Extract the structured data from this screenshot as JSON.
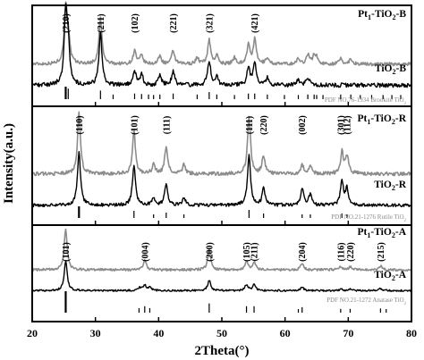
{
  "chart_data": {
    "type": "line",
    "xlabel": "2Theta(°)",
    "ylabel": "Intensity(a.u.)",
    "xlim": [
      20,
      80
    ],
    "xticks": [
      "20",
      "30",
      "40",
      "50",
      "60",
      "70",
      "80"
    ],
    "grid": false,
    "colors": {
      "gray": "#8c8c8c",
      "black": "#000000",
      "ref": "#000000",
      "refGray": "#9a9a9a"
    },
    "panels": [
      {
        "id": "brookite",
        "series": [
          {
            "name": "Pt1-TiO2-B",
            "label": [
              "Pt",
              "1",
              "-TiO",
              "2",
              "-B"
            ],
            "color": "gray",
            "peaks": [
              [
                25.3,
                1.0
              ],
              [
                25.7,
                0.45
              ],
              [
                30.8,
                0.85
              ],
              [
                36.2,
                0.25
              ],
              [
                37.3,
                0.15
              ],
              [
                40.2,
                0.15
              ],
              [
                42.3,
                0.25
              ],
              [
                46.1,
                0.12
              ],
              [
                48.0,
                0.45
              ],
              [
                49.2,
                0.15
              ],
              [
                52.0,
                0.12
              ],
              [
                54.2,
                0.35
              ],
              [
                55.2,
                0.45
              ],
              [
                57.2,
                0.12
              ],
              [
                62.1,
                0.1
              ],
              [
                63.6,
                0.18
              ],
              [
                64.6,
                0.15
              ],
              [
                65.0,
                0.1
              ],
              [
                68.8,
                0.1
              ],
              [
                70.4,
                0.1
              ]
            ]
          },
          {
            "name": "TiO2-B",
            "label": [
              "TiO",
              "2",
              "-B"
            ],
            "color": "black",
            "peaks": [
              [
                25.3,
                1.0
              ],
              [
                25.7,
                0.5
              ],
              [
                30.8,
                0.75
              ],
              [
                36.2,
                0.2
              ],
              [
                37.3,
                0.15
              ],
              [
                40.2,
                0.15
              ],
              [
                42.3,
                0.2
              ],
              [
                48.0,
                0.35
              ],
              [
                49.2,
                0.12
              ],
              [
                54.2,
                0.25
              ],
              [
                55.2,
                0.3
              ],
              [
                57.2,
                0.1
              ],
              [
                62.1,
                0.08
              ],
              [
                63.6,
                0.12
              ]
            ]
          }
        ],
        "reference": {
          "label": [
            "PDF NO.76-1934 Brookite TiO",
            "2"
          ],
          "lines": [
            [
              25.3,
              1.0
            ],
            [
              25.7,
              0.8
            ],
            [
              30.8,
              0.6
            ],
            [
              32.8,
              0.2
            ],
            [
              36.2,
              0.3
            ],
            [
              37.3,
              0.25
            ],
            [
              38.4,
              0.2
            ],
            [
              39.2,
              0.15
            ],
            [
              40.2,
              0.2
            ],
            [
              42.3,
              0.3
            ],
            [
              46.1,
              0.2
            ],
            [
              48.0,
              0.45
            ],
            [
              49.2,
              0.2
            ],
            [
              52.0,
              0.15
            ],
            [
              54.2,
              0.3
            ],
            [
              55.2,
              0.3
            ],
            [
              57.2,
              0.2
            ],
            [
              59.9,
              0.15
            ],
            [
              62.1,
              0.15
            ],
            [
              63.6,
              0.2
            ],
            [
              64.6,
              0.2
            ],
            [
              65.0,
              0.15
            ],
            [
              66.0,
              0.15
            ],
            [
              68.8,
              0.2
            ],
            [
              70.4,
              0.2
            ],
            [
              71.9,
              0.15
            ],
            [
              73.7,
              0.15
            ],
            [
              75.5,
              0.15
            ],
            [
              76.9,
              0.15
            ],
            [
              78.3,
              0.15
            ]
          ]
        },
        "hkl": [
          {
            "text": "(210)",
            "x": 25.3
          },
          {
            "text": "(211)",
            "x": 30.8
          },
          {
            "text": "(102)",
            "x": 36.2
          },
          {
            "text": "(221)",
            "x": 42.3
          },
          {
            "text": "(321)",
            "x": 48.0
          },
          {
            "text": "(421)",
            "x": 55.2
          }
        ]
      },
      {
        "id": "rutile",
        "series": [
          {
            "name": "Pt1-TiO2-R",
            "label": [
              "Pt",
              "1",
              "-TiO",
              "2",
              "-R"
            ],
            "color": "gray",
            "peaks": [
              [
                27.4,
                1.0
              ],
              [
                36.1,
                0.7
              ],
              [
                39.2,
                0.15
              ],
              [
                41.2,
                0.45
              ],
              [
                44.0,
                0.15
              ],
              [
                54.3,
                0.95
              ],
              [
                56.6,
                0.3
              ],
              [
                62.7,
                0.15
              ],
              [
                64.0,
                0.12
              ],
              [
                69.0,
                0.35
              ],
              [
                69.8,
                0.3
              ]
            ]
          },
          {
            "name": "TiO2-R",
            "label": [
              "TiO",
              "2",
              "-R"
            ],
            "color": "black",
            "peaks": [
              [
                27.4,
                1.0
              ],
              [
                36.1,
                0.75
              ],
              [
                39.2,
                0.15
              ],
              [
                41.2,
                0.4
              ],
              [
                44.0,
                0.15
              ],
              [
                54.3,
                0.95
              ],
              [
                56.6,
                0.3
              ],
              [
                62.7,
                0.3
              ],
              [
                64.0,
                0.2
              ],
              [
                69.0,
                0.45
              ],
              [
                69.8,
                0.3
              ]
            ]
          }
        ],
        "reference": {
          "label": [
            "PDF NO.21-1276 Rutile TiO",
            "2"
          ],
          "lines": [
            [
              27.4,
              1.0
            ],
            [
              36.1,
              0.5
            ],
            [
              39.2,
              0.1
            ],
            [
              41.2,
              0.3
            ],
            [
              44.0,
              0.1
            ],
            [
              54.3,
              0.6
            ],
            [
              56.6,
              0.2
            ],
            [
              62.7,
              0.1
            ],
            [
              64.0,
              0.1
            ],
            [
              69.0,
              0.2
            ],
            [
              69.8,
              0.1
            ]
          ]
        },
        "hkl": [
          {
            "text": "(110)",
            "x": 27.4
          },
          {
            "text": "(101)",
            "x": 36.1
          },
          {
            "text": "(111)",
            "x": 41.2
          },
          {
            "text": "(111)",
            "x": 54.3
          },
          {
            "text": "(220)",
            "x": 56.6
          },
          {
            "text": "(002)",
            "x": 62.7
          },
          {
            "text": "(301)",
            "x": 68.8
          },
          {
            "text": "(112)",
            "x": 69.8
          }
        ]
      },
      {
        "id": "anatase",
        "series": [
          {
            "name": "Pt1-TiO2-A",
            "label": [
              "Pt",
              "1",
              "-TiO",
              "2",
              "-A"
            ],
            "color": "gray",
            "peaks": [
              [
                25.3,
                1.0
              ],
              [
                37.8,
                0.25
              ],
              [
                48.0,
                0.5
              ],
              [
                53.9,
                0.2
              ],
              [
                55.1,
                0.2
              ],
              [
                62.7,
                0.15
              ],
              [
                68.8,
                0.08
              ],
              [
                70.3,
                0.08
              ],
              [
                75.1,
                0.1
              ]
            ]
          },
          {
            "name": "TiO2-A",
            "label": [
              "TiO",
              "2",
              "-A"
            ],
            "color": "black",
            "peaks": [
              [
                25.3,
                1.0
              ],
              [
                37.0,
                0.1
              ],
              [
                37.8,
                0.2
              ],
              [
                38.6,
                0.1
              ],
              [
                48.0,
                0.35
              ],
              [
                53.9,
                0.2
              ],
              [
                55.1,
                0.2
              ],
              [
                62.7,
                0.12
              ],
              [
                68.8,
                0.05
              ],
              [
                70.3,
                0.05
              ],
              [
                75.1,
                0.07
              ]
            ]
          }
        ],
        "reference": {
          "label": [
            "PDF NO.21-1272 Anatase TiO",
            "2"
          ],
          "lines": [
            [
              25.3,
              1.0
            ],
            [
              36.9,
              0.1
            ],
            [
              37.8,
              0.2
            ],
            [
              38.6,
              0.1
            ],
            [
              48.0,
              0.35
            ],
            [
              53.9,
              0.2
            ],
            [
              55.1,
              0.2
            ],
            [
              62.1,
              0.05
            ],
            [
              62.7,
              0.15
            ],
            [
              68.8,
              0.06
            ],
            [
              70.3,
              0.06
            ],
            [
              75.1,
              0.08
            ],
            [
              76.0,
              0.05
            ]
          ]
        },
        "hkl": [
          {
            "text": "(101)",
            "x": 25.3
          },
          {
            "text": "(004)",
            "x": 37.8
          },
          {
            "text": "(200)",
            "x": 48.0
          },
          {
            "text": "(105)",
            "x": 53.9
          },
          {
            "text": "(211)",
            "x": 55.1
          },
          {
            "text": "(204)",
            "x": 62.7
          },
          {
            "text": "(116)",
            "x": 68.8
          },
          {
            "text": "(220)",
            "x": 70.3
          },
          {
            "text": "(215)",
            "x": 75.1
          }
        ]
      }
    ]
  }
}
